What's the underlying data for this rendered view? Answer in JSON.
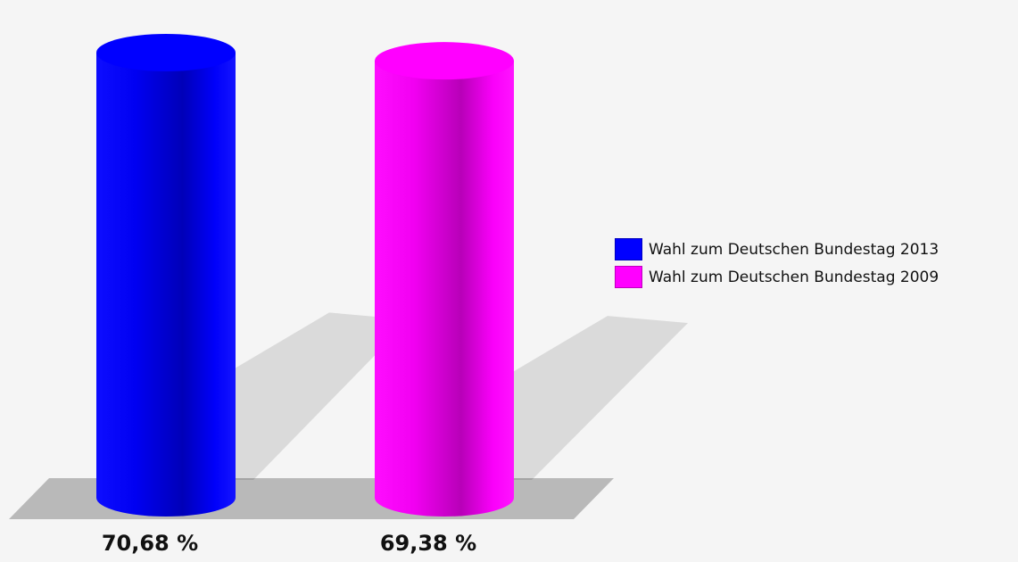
{
  "chart_data": {
    "type": "bar",
    "style": "3d-cylinder",
    "categories": [
      "Wahl zum Deutschen Bundestag 2013",
      "Wahl zum Deutschen Bundestag 2009"
    ],
    "values": [
      70.68,
      69.38
    ],
    "value_labels": [
      "70,68 %",
      "69,38 %"
    ],
    "unit": "%",
    "colors": [
      "#0000ff",
      "#ff00ff"
    ],
    "legend": [
      {
        "label": "Wahl zum Deutschen Bundestag 2013",
        "color": "#0000ff"
      },
      {
        "label": "Wahl zum Deutschen Bundestag 2009",
        "color": "#ff00ff"
      }
    ],
    "legend_position": "right",
    "grid": false,
    "title": "",
    "xlabel": "",
    "ylabel": ""
  }
}
